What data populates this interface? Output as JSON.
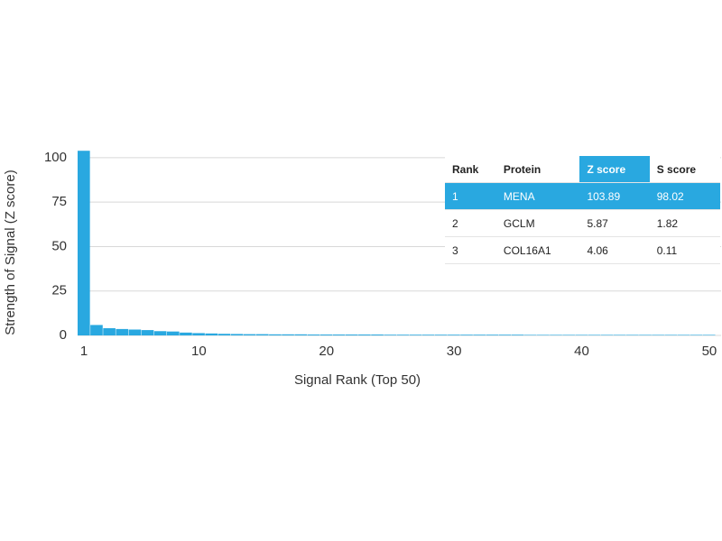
{
  "chart_data": {
    "type": "bar",
    "ylabel": "Strength of Signal (Z score)",
    "xlabel": "Signal Rank (Top 50)",
    "color": "#29a8e0",
    "x": [
      1,
      2,
      3,
      4,
      5,
      6,
      7,
      8,
      9,
      10,
      11,
      12,
      13,
      14,
      15,
      16,
      17,
      18,
      19,
      20,
      21,
      22,
      23,
      24,
      25,
      26,
      27,
      28,
      29,
      30,
      31,
      32,
      33,
      34,
      35,
      36,
      37,
      38,
      39,
      40,
      41,
      42,
      43,
      44,
      45,
      46,
      47,
      48,
      49,
      50
    ],
    "values": [
      103.89,
      5.87,
      4.06,
      3.6,
      3.3,
      3.0,
      2.4,
      2.2,
      1.6,
      1.3,
      1.1,
      0.9,
      0.8,
      0.7,
      0.7,
      0.6,
      0.6,
      0.6,
      0.5,
      0.5,
      0.5,
      0.5,
      0.5,
      0.5,
      0.4,
      0.4,
      0.4,
      0.4,
      0.4,
      0.4,
      0.4,
      0.4,
      0.4,
      0.4,
      0.4,
      0.3,
      0.3,
      0.3,
      0.3,
      0.3,
      0.3,
      0.3,
      0.3,
      0.3,
      0.3,
      0.3,
      0.3,
      0.3,
      0.3,
      0.3
    ],
    "xlim": [
      0.5,
      50.5
    ],
    "xticks": [
      1,
      10,
      20,
      30,
      40,
      50
    ],
    "ylim": [
      0,
      104
    ],
    "yticks": [
      0,
      25,
      50,
      75,
      100
    ],
    "grid": true
  },
  "table": {
    "columns": [
      "Rank",
      "Protein",
      "Z score",
      "S score"
    ],
    "rows": [
      [
        "1",
        "MENA",
        "103.89",
        "98.02"
      ],
      [
        "2",
        "GCLM",
        "5.87",
        "1.82"
      ],
      [
        "3",
        "COL16A1",
        "4.06",
        "0.11"
      ]
    ]
  }
}
